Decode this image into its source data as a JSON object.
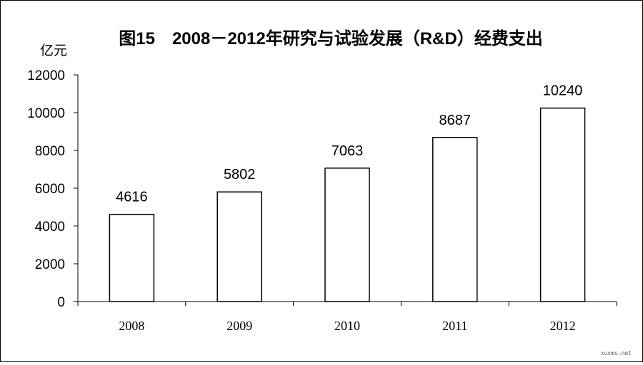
{
  "chart_data": {
    "type": "bar",
    "title": "图15　2008－2012年研究与试验发展（R&D）经费支出",
    "unit_label": "亿元",
    "categories": [
      "2008",
      "2009",
      "2010",
      "2011",
      "2012"
    ],
    "values": [
      4616,
      5802,
      7063,
      8687,
      10240
    ],
    "data_labels": [
      "4616",
      "5802",
      "7063",
      "8687",
      "10240"
    ],
    "ylim": [
      0,
      12000
    ],
    "yticks": [
      "0",
      "2000",
      "4000",
      "6000",
      "8000",
      "10000",
      "12000"
    ],
    "grid": false,
    "legend": "none"
  },
  "watermark": "xuxms.net"
}
